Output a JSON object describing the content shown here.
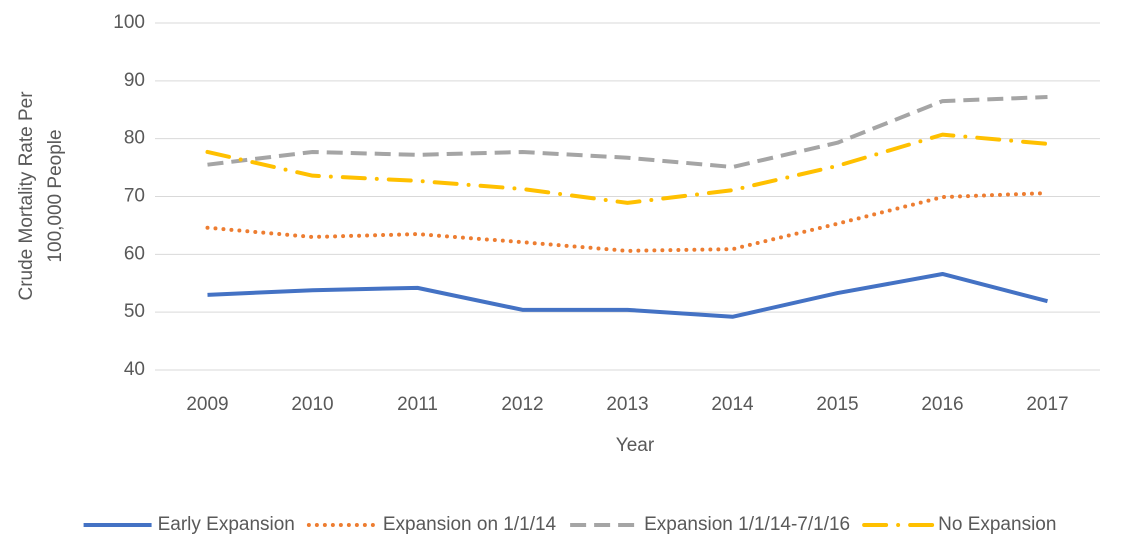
{
  "chart_data": {
    "type": "line",
    "xlabel": "Year",
    "ylabel": [
      "Crude Mortality Rate Per",
      "100,000 People"
    ],
    "categories": [
      "2009",
      "2010",
      "2011",
      "2012",
      "2013",
      "2014",
      "2015",
      "2016",
      "2017"
    ],
    "series": [
      {
        "name": "Early Expansion",
        "color": "#4472c4",
        "dash": "solid",
        "values": [
          53.0,
          53.8,
          54.2,
          50.4,
          50.4,
          49.2,
          53.3,
          56.6,
          51.9
        ]
      },
      {
        "name": "Expansion on 1/1/14",
        "color": "#ed7d31",
        "dash": "dot",
        "values": [
          64.6,
          63.0,
          63.5,
          62.1,
          60.6,
          60.9,
          65.3,
          69.9,
          70.6
        ]
      },
      {
        "name": "Expansion 1/1/14-7/1/16",
        "color": "#a5a5a5",
        "dash": "dash",
        "values": [
          75.5,
          77.7,
          77.2,
          77.7,
          76.7,
          75.1,
          79.3,
          86.5,
          87.2
        ]
      },
      {
        "name": "No Expansion",
        "color": "#ffc000",
        "dash": "longdashdot",
        "values": [
          77.7,
          73.6,
          72.7,
          71.3,
          68.9,
          71.1,
          75.3,
          80.7,
          79.1
        ]
      }
    ],
    "ylim": [
      40,
      100
    ],
    "yticks": [
      40,
      50,
      60,
      70,
      80,
      90,
      100
    ],
    "grid": true,
    "legend": "bottom"
  }
}
